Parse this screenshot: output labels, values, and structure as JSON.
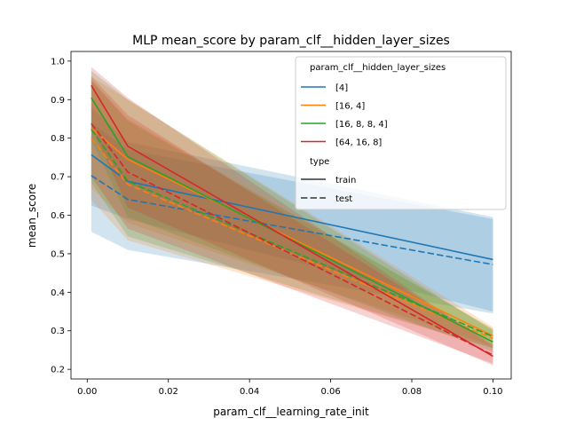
{
  "chart_data": {
    "type": "line",
    "title": "MLP mean_score by param_clf__hidden_layer_sizes",
    "xlabel": "param_clf__learning_rate_init",
    "ylabel": "mean_score",
    "xlim": [
      -0.004,
      0.1045
    ],
    "ylim": [
      0.175,
      1.025
    ],
    "x_ticks": [
      0.0,
      0.02,
      0.04,
      0.06,
      0.08,
      0.1
    ],
    "x_tick_labels": [
      "0.00",
      "0.02",
      "0.04",
      "0.06",
      "0.08",
      "0.10"
    ],
    "y_ticks": [
      0.2,
      0.3,
      0.4,
      0.5,
      0.6,
      0.7,
      0.8,
      0.9,
      1.0
    ],
    "y_tick_labels": [
      "0.2",
      "0.3",
      "0.4",
      "0.5",
      "0.6",
      "0.7",
      "0.8",
      "0.9",
      "1.0"
    ],
    "x": [
      0.001,
      0.01,
      0.1
    ],
    "grid": false,
    "legend": {
      "placement": "top-right",
      "hue_title": "param_clf__hidden_layer_sizes",
      "style_title": "type",
      "style_entries": [
        {
          "label": "train",
          "dash": "solid"
        },
        {
          "label": "test",
          "dash": "dashed"
        }
      ]
    },
    "series": [
      {
        "name": "[4]",
        "color": "#1f77b4",
        "train": {
          "values": [
            0.757,
            0.688,
            0.485
          ],
          "lower": [
            0.625,
            0.59,
            0.35
          ],
          "upper": [
            0.88,
            0.79,
            0.595
          ]
        },
        "test": {
          "values": [
            0.703,
            0.641,
            0.472
          ],
          "lower": [
            0.557,
            0.51,
            0.345
          ],
          "upper": [
            0.84,
            0.77,
            0.59
          ]
        }
      },
      {
        "name": "[16, 4]",
        "color": "#ff7f0e",
        "train": {
          "values": [
            0.826,
            0.745,
            0.287
          ],
          "lower": [
            0.67,
            0.58,
            0.26
          ],
          "upper": [
            0.96,
            0.9,
            0.31
          ]
        },
        "test": {
          "values": [
            0.8,
            0.68,
            0.28
          ],
          "lower": [
            0.64,
            0.535,
            0.255
          ],
          "upper": [
            0.95,
            0.85,
            0.305
          ]
        }
      },
      {
        "name": "[16, 8, 8, 4]",
        "color": "#2ca02c",
        "train": {
          "values": [
            0.905,
            0.752,
            0.271
          ],
          "lower": [
            0.795,
            0.595,
            0.245
          ],
          "upper": [
            0.975,
            0.9,
            0.3
          ]
        },
        "test": {
          "values": [
            0.823,
            0.688,
            0.285
          ],
          "lower": [
            0.685,
            0.545,
            0.255
          ],
          "upper": [
            0.95,
            0.845,
            0.305
          ]
        }
      },
      {
        "name": "[64, 16, 8]",
        "color": "#d62728",
        "train": {
          "values": [
            0.937,
            0.779,
            0.234
          ],
          "lower": [
            0.83,
            0.62,
            0.21
          ],
          "upper": [
            0.985,
            0.905,
            0.26
          ]
        },
        "test": {
          "values": [
            0.838,
            0.712,
            0.237
          ],
          "lower": [
            0.7,
            0.565,
            0.215
          ],
          "upper": [
            0.96,
            0.86,
            0.265
          ]
        }
      }
    ]
  }
}
